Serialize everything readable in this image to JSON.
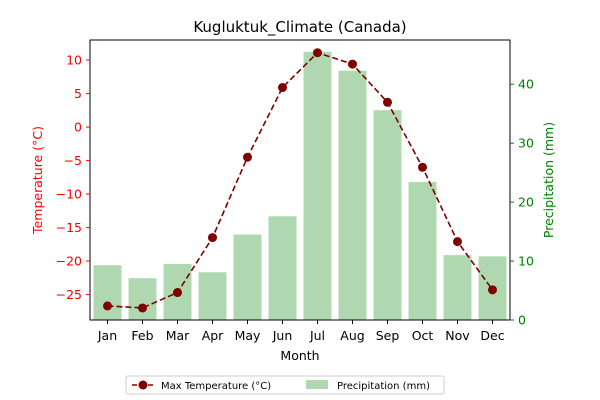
{
  "chart_data": {
    "type": "bar+line",
    "title": "Kugluktuk_Climate (Canada)",
    "xlabel": "Month",
    "categories": [
      "Jan",
      "Feb",
      "Mar",
      "Apr",
      "May",
      "Jun",
      "Jul",
      "Aug",
      "Sep",
      "Oct",
      "Nov",
      "Dec"
    ],
    "left_axis": {
      "label": "Temperature (°C)",
      "color": "#ff0000",
      "ylim": [
        -28.8,
        13.0
      ],
      "ticks": [
        10,
        5,
        0,
        -5,
        -10,
        -15,
        -20,
        -25
      ],
      "tick_labels": [
        "10",
        "5",
        "0",
        "−5",
        "−10",
        "−15",
        "−20",
        "−25"
      ]
    },
    "right_axis": {
      "label": "Precipitation (mm)",
      "color": "#008000",
      "ylim": [
        0,
        47.5
      ],
      "ticks": [
        0,
        10,
        20,
        30,
        40
      ],
      "tick_labels": [
        "0",
        "10",
        "20",
        "30",
        "40"
      ]
    },
    "series": [
      {
        "name": "Max Temperature (°C)",
        "type": "line",
        "axis": "left",
        "color": "#800000",
        "values": [
          -26.7,
          -27.0,
          -24.7,
          -16.5,
          -4.5,
          5.9,
          11.1,
          9.4,
          3.7,
          -6.0,
          -17.1,
          -24.3
        ]
      },
      {
        "name": "Precipitation (mm)",
        "type": "bar",
        "axis": "right",
        "color": "#b0d8b0",
        "values": [
          9.3,
          7.1,
          9.5,
          8.1,
          14.5,
          17.6,
          45.5,
          42.3,
          35.6,
          23.4,
          11.0,
          10.8
        ]
      }
    ],
    "legend_position": "bottom-center",
    "grid": false
  }
}
